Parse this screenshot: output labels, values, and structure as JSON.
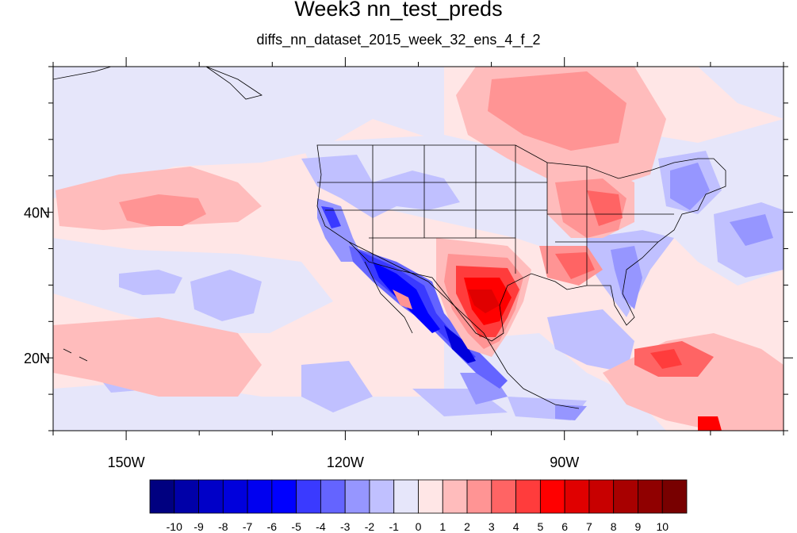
{
  "title": "Week3 nn_test_preds",
  "subtitle": "diffs_nn_dataset_2015_week_32_ens_4_f_2",
  "map": {
    "lon_range": [
      -160,
      -60
    ],
    "lat_range": [
      10,
      60
    ],
    "x_ticks": [
      {
        "lon": -150,
        "label": "150W"
      },
      {
        "lon": -120,
        "label": "120W"
      },
      {
        "lon": -90,
        "label": "90W"
      }
    ],
    "y_ticks": [
      {
        "lat": 20,
        "label": "20N"
      },
      {
        "lat": 40,
        "label": "40N"
      }
    ]
  },
  "colorbar": {
    "labels": [
      "-10",
      "-9",
      "-8",
      "-7",
      "-6",
      "-5",
      "-4",
      "-3",
      "-2",
      "-1",
      "0",
      "1",
      "2",
      "3",
      "4",
      "5",
      "6",
      "7",
      "8",
      "9",
      "10"
    ],
    "colors": [
      "#000080",
      "#0000a8",
      "#0000c8",
      "#0000dc",
      "#0000f0",
      "#0000ff",
      "#3a3aff",
      "#6464ff",
      "#9696ff",
      "#c0c0ff",
      "#e6e6fa",
      "#ffe6e6",
      "#ffbcbc",
      "#ff9494",
      "#ff6464",
      "#ff3c3c",
      "#ff0000",
      "#e00000",
      "#c80000",
      "#a80000",
      "#900000",
      "#780000"
    ]
  }
}
